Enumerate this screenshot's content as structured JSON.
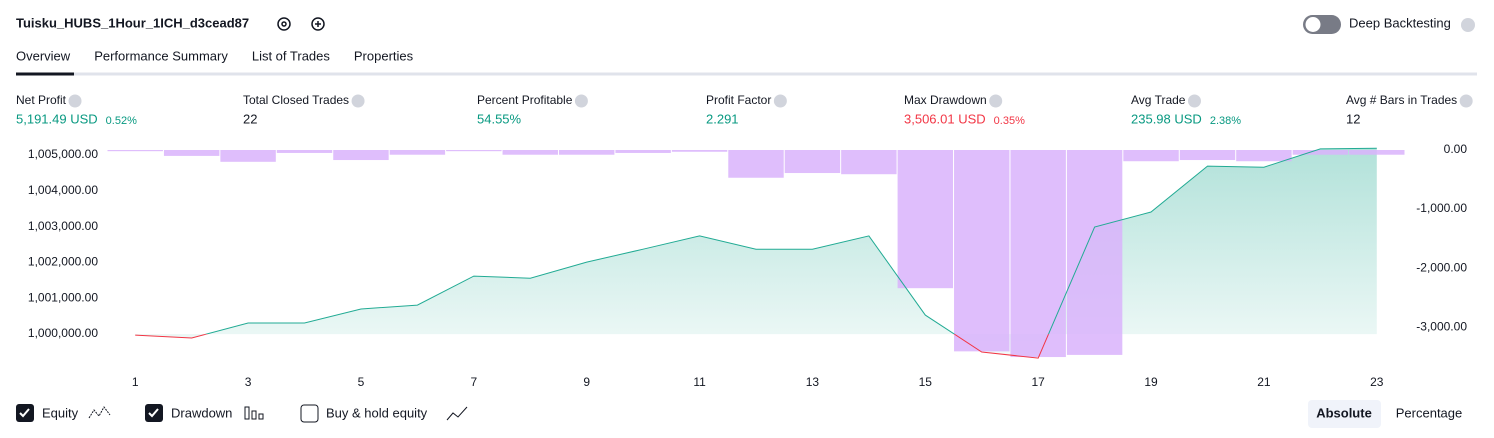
{
  "header": {
    "title": "Tuisku_HUBS_1Hour_1ICH_d3cead87",
    "deep_backtesting": "Deep Backtesting"
  },
  "tabs": [
    "Overview",
    "Performance Summary",
    "List of Trades",
    "Properties"
  ],
  "metrics": [
    {
      "label": "Net Profit",
      "value": "5,191.49 USD",
      "percent": "0.52%",
      "tone": "positive"
    },
    {
      "label": "Total Closed Trades",
      "value": "22",
      "tone": "neutral"
    },
    {
      "label": "Percent Profitable",
      "value": "54.55%",
      "tone": "positive"
    },
    {
      "label": "Profit Factor",
      "value": "2.291",
      "tone": "positive"
    },
    {
      "label": "Max Drawdown",
      "value": "3,506.01 USD",
      "percent": "0.35%",
      "tone": "negative"
    },
    {
      "label": "Avg Trade",
      "value": "235.98 USD",
      "percent": "2.38%",
      "tone": "positive"
    },
    {
      "label": "Avg # Bars in Trades",
      "value": "12",
      "tone": "neutral"
    }
  ],
  "chart_data": {
    "type": "line",
    "x": [
      1,
      2,
      3,
      4,
      5,
      6,
      7,
      8,
      9,
      10,
      11,
      12,
      13,
      14,
      15,
      16,
      17,
      18,
      19,
      20,
      21,
      22,
      23
    ],
    "xlim": [
      0.5,
      23.5
    ],
    "xticks": [
      1,
      3,
      5,
      7,
      9,
      11,
      13,
      15,
      17,
      19,
      21,
      23
    ],
    "ylim": [
      999220,
      1005140
    ],
    "yticks": [
      {
        "value": 1000000,
        "label": "1,000,000.00"
      },
      {
        "value": 1001000,
        "label": "1,001,000.00"
      },
      {
        "value": 1002000,
        "label": "1,002,000.00"
      },
      {
        "value": 1003000,
        "label": "1,003,000.00"
      },
      {
        "value": 1004000,
        "label": "1,004,000.00"
      },
      {
        "value": 1005000,
        "label": "1,005,000.00"
      }
    ],
    "y2lim": [
      -3590,
      0
    ],
    "y2ticks": [
      {
        "value": 0,
        "label": "0.00"
      },
      {
        "value": -1000,
        "label": "-1,000.00"
      },
      {
        "value": -2000,
        "label": "-2,000.00"
      },
      {
        "value": -3000,
        "label": "-3,000.00"
      }
    ],
    "negative_color": "#f23645",
    "series": [
      {
        "name": "Equity",
        "color": "#22ab94",
        "values": [
          999970,
          999890,
          1000310,
          1000310,
          1000700,
          1000810,
          1001620,
          1001560,
          1002010,
          1002370,
          1002740,
          1002370,
          1002370,
          1002740,
          1000530,
          999500,
          999330,
          1002990,
          1003410,
          1004690,
          1004660,
          1005170,
          1005191
        ]
      },
      {
        "name": "Drawdown",
        "color": "#d9b3fc",
        "axis": "y2",
        "values": [
          -20,
          -100,
          -200,
          -50,
          -170,
          -80,
          -20,
          -80,
          -80,
          -50,
          -30,
          -470,
          -390,
          -410,
          -2340,
          -3410,
          -3506,
          -3470,
          -190,
          -170,
          -190,
          -80,
          -80
        ]
      }
    ]
  },
  "controls": {
    "buy_hold": "Buy & hold equity",
    "absolute": "Absolute",
    "percentage": "Percentage"
  }
}
